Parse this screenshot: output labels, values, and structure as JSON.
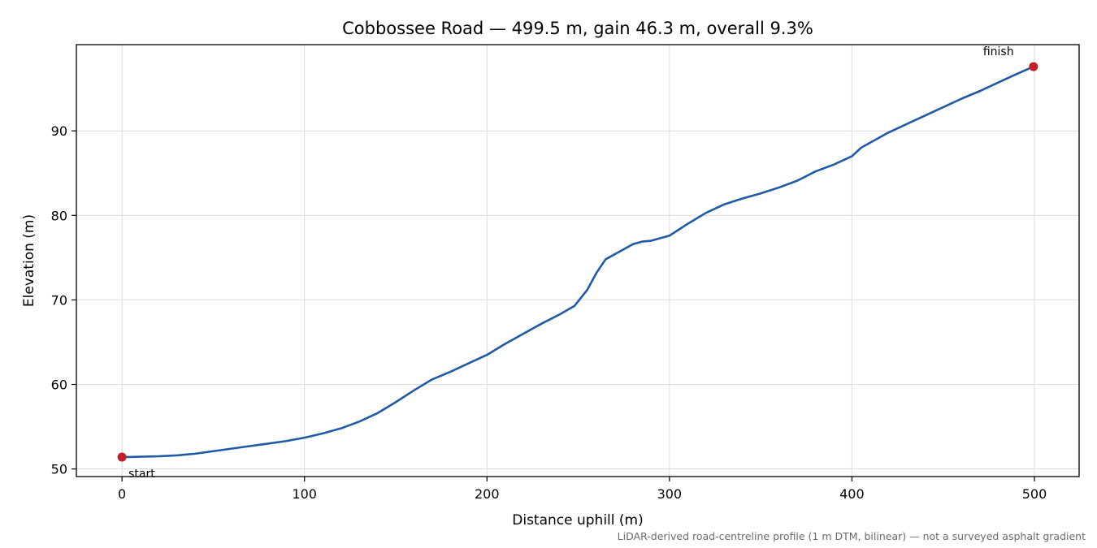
{
  "chart_data": {
    "type": "line",
    "title": "Cobbossee Road — 499.5 m, gain 46.3 m, overall 9.3%",
    "xlabel": "Distance uphill (m)",
    "ylabel": "Elevation (m)",
    "xlim": [
      -25,
      524.5
    ],
    "ylim": [
      49.1,
      100.2
    ],
    "xticks": [
      0,
      100,
      200,
      300,
      400,
      500
    ],
    "yticks": [
      50,
      60,
      70,
      80,
      90
    ],
    "grid": true,
    "line_color": "#1f5aa6",
    "marker_color": "#c0202a",
    "series": [
      {
        "x": [
          0,
          10,
          20,
          30,
          40,
          50,
          60,
          70,
          80,
          90,
          100,
          110,
          120,
          130,
          140,
          150,
          160,
          170,
          180,
          190,
          200,
          210,
          220,
          230,
          240,
          248,
          255,
          260,
          265,
          270,
          275,
          280,
          285,
          290,
          295,
          300,
          305,
          310,
          320,
          330,
          340,
          350,
          360,
          370,
          380,
          390,
          400,
          405,
          410,
          420,
          430,
          440,
          450,
          460,
          470,
          480,
          490,
          499.5
        ],
        "y": [
          51.4,
          51.45,
          51.5,
          51.6,
          51.8,
          52.1,
          52.4,
          52.7,
          53.0,
          53.3,
          53.7,
          54.2,
          54.8,
          55.6,
          56.6,
          57.9,
          59.3,
          60.6,
          61.5,
          62.5,
          63.5,
          64.8,
          66.0,
          67.2,
          68.3,
          69.3,
          71.2,
          73.2,
          74.8,
          75.4,
          76.0,
          76.6,
          76.9,
          77.0,
          77.3,
          77.6,
          78.3,
          79.0,
          80.3,
          81.3,
          82.0,
          82.6,
          83.3,
          84.1,
          85.2,
          86.0,
          87.0,
          88.0,
          88.6,
          89.8,
          90.8,
          91.8,
          92.8,
          93.8,
          94.7,
          95.7,
          96.7,
          97.6
        ]
      }
    ],
    "annotations": [
      {
        "text": "start",
        "x": 0,
        "y": 51.4
      },
      {
        "text": "finish",
        "x": 499.5,
        "y": 97.6
      }
    ],
    "footnote": "LiDAR-derived road-centreline profile (1 m DTM, bilinear) — not a surveyed asphalt gradient"
  }
}
